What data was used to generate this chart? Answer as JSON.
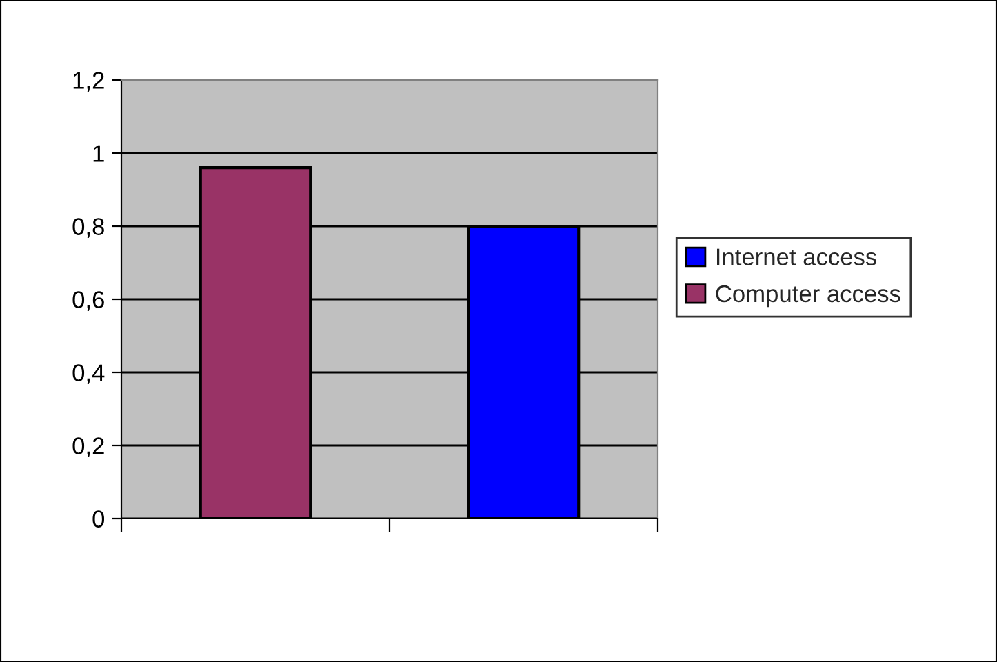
{
  "chart_data": {
    "type": "bar",
    "categories": [
      null,
      null
    ],
    "series": [
      {
        "name": "Internet access",
        "color": "#0000ff",
        "values": [
          null,
          0.8
        ]
      },
      {
        "name": "Computer access",
        "color": "#993366",
        "values": [
          0.96,
          null
        ]
      }
    ],
    "ylim": [
      0,
      1.2
    ],
    "yticks": [
      0,
      {
        "value": 0.2,
        "label": "0,2"
      },
      {
        "value": 0.4,
        "label": "0,4"
      },
      {
        "value": 0.6,
        "label": "0,6"
      },
      {
        "value": 0.8,
        "label": "0,8"
      },
      1,
      {
        "value": 1.2,
        "label": "1,2"
      }
    ],
    "grid": "y",
    "legend": "right"
  }
}
